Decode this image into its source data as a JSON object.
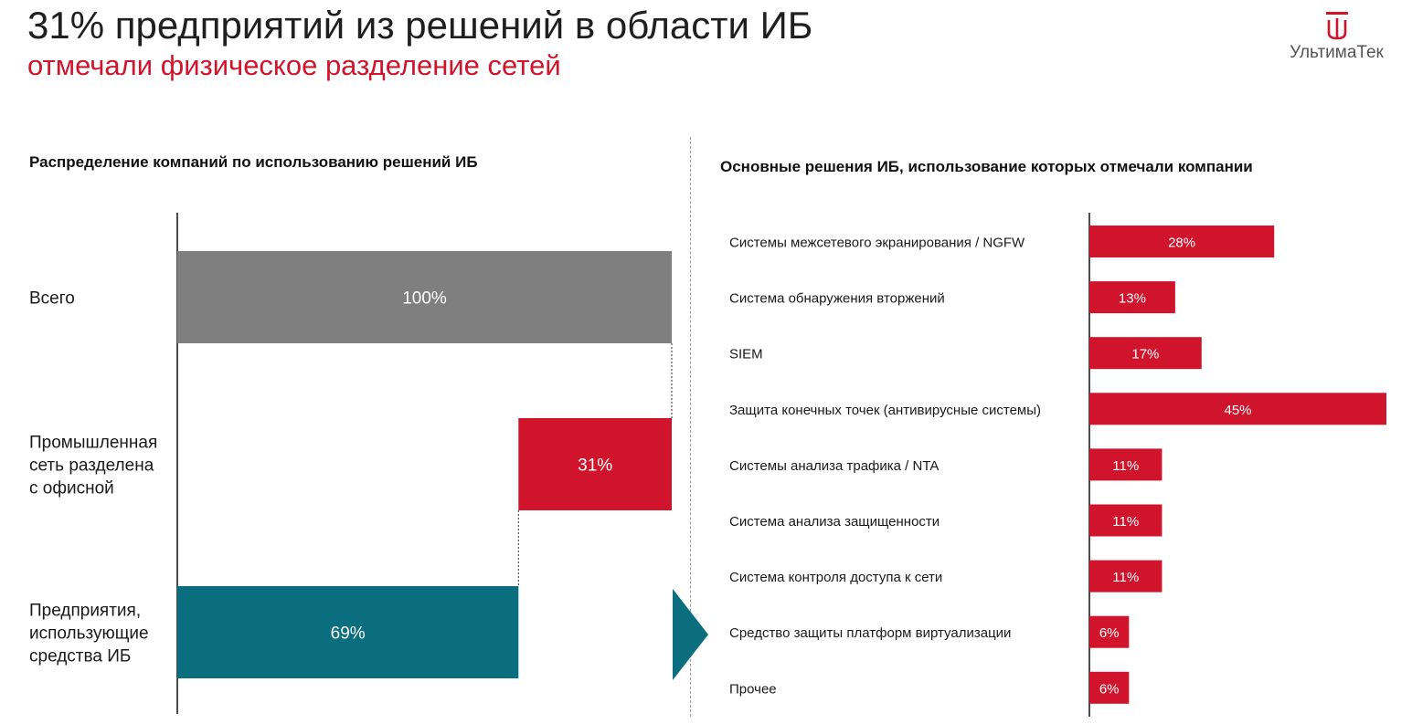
{
  "header": {
    "title": "31% предприятий из решений в области ИБ",
    "subtitle": "отмечали физическое разделение сетей"
  },
  "logo": {
    "text": "УльтимаТек",
    "icon": "ultimatek-logo-icon",
    "color": "#d0142c"
  },
  "colors": {
    "red": "#d0142c",
    "gray": "#7f7f7f",
    "teal": "#0b6e7f"
  },
  "chart_data": [
    {
      "type": "bar",
      "title": "Распределение компаний по использованию решений ИБ",
      "orientation": "horizontal-waterfall",
      "categories": [
        "Всего",
        "Промышленная сеть разделена с офисной",
        "Предприятия, использующие средства ИБ"
      ],
      "category_lines": [
        [
          "Всего"
        ],
        [
          "Промышленная",
          "сеть разделена",
          "с офисной"
        ],
        [
          "Предприятия,",
          "использующие",
          "средства ИБ"
        ]
      ],
      "values": [
        100,
        31,
        69
      ],
      "value_labels": [
        "100%",
        "31%",
        "69%"
      ],
      "unit": "%",
      "xlim": [
        0,
        100
      ],
      "colors": [
        "#7f7f7f",
        "#d0142c",
        "#0b6e7f"
      ],
      "grid": false
    },
    {
      "type": "bar",
      "title": "Основные решения ИБ, использование которых отмечали компании",
      "orientation": "horizontal",
      "categories": [
        "Системы межсетевого экранирования / NGFW",
        "Система обнаружения вторжений",
        "SIEM",
        "Защита конечных точек (антивирусные системы)",
        "Системы анализа трафика / NTA",
        "Система анализа защищенности",
        "Система контроля доступа к сети",
        "Средство защиты платформ виртуализации",
        "Прочее"
      ],
      "values": [
        28,
        13,
        17,
        45,
        11,
        11,
        11,
        6,
        6
      ],
      "value_labels": [
        "28%",
        "13%",
        "17%",
        "45%",
        "11%",
        "11%",
        "11%",
        "6%",
        "6%"
      ],
      "unit": "%",
      "xlim": [
        0,
        45
      ],
      "color": "#d0142c",
      "grid": false
    }
  ]
}
